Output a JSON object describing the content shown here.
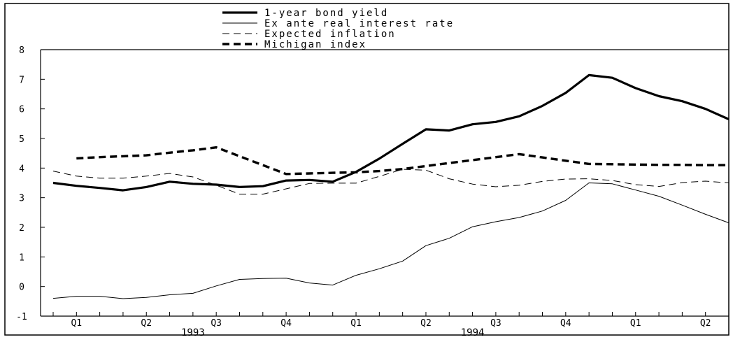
{
  "chart_data": {
    "type": "line",
    "title": "",
    "xlabel": "",
    "ylabel": "",
    "ylim": [
      -1,
      8
    ],
    "yticks": [
      -1,
      0,
      1,
      2,
      3,
      4,
      5,
      6,
      7,
      8
    ],
    "grid": false,
    "legend_position": "top-center",
    "x_periods": [
      "1993-01",
      "1993-02",
      "1993-03",
      "1993-04",
      "1993-05",
      "1993-06",
      "1993-07",
      "1993-08",
      "1993-09",
      "1993-10",
      "1993-11",
      "1993-12",
      "1994-01",
      "1994-02",
      "1994-03",
      "1994-04",
      "1994-05",
      "1994-06",
      "1994-07",
      "1994-08",
      "1994-09",
      "1994-10",
      "1994-11",
      "1994-12",
      "1995-01",
      "1995-02",
      "1995-03",
      "1995-04",
      "1995-05",
      "1995-06"
    ],
    "quarter_labels": [
      {
        "label": "Q1",
        "period": "1993-02"
      },
      {
        "label": "Q2",
        "period": "1993-05"
      },
      {
        "label": "Q3",
        "period": "1993-08"
      },
      {
        "label": "Q4",
        "period": "1993-11"
      },
      {
        "label": "Q1",
        "period": "1994-02"
      },
      {
        "label": "Q2",
        "period": "1994-05"
      },
      {
        "label": "Q3",
        "period": "1994-08"
      },
      {
        "label": "Q4",
        "period": "1994-11"
      },
      {
        "label": "Q1",
        "period": "1995-02"
      },
      {
        "label": "Q2",
        "period": "1995-05"
      }
    ],
    "year_labels": [
      {
        "label": "1993",
        "period": "1993-07"
      },
      {
        "label": "1994",
        "period": "1994-07"
      }
    ],
    "series": [
      {
        "name": "1-year bond yield",
        "style": "thick-solid",
        "values": [
          3.5,
          3.4,
          3.33,
          3.25,
          3.36,
          3.54,
          3.47,
          3.44,
          3.36,
          3.39,
          3.58,
          3.6,
          3.54,
          3.87,
          4.32,
          4.82,
          5.31,
          5.27,
          5.48,
          5.56,
          5.75,
          6.1,
          6.54,
          7.14,
          7.05,
          6.7,
          6.43,
          6.26,
          6.0,
          5.65
        ]
      },
      {
        "name": "Ex ante real interest rate",
        "style": "thin-solid",
        "values": [
          -0.4,
          -0.33,
          -0.33,
          -0.41,
          -0.37,
          -0.28,
          -0.23,
          0.02,
          0.24,
          0.27,
          0.28,
          0.12,
          0.05,
          0.38,
          0.6,
          0.86,
          1.38,
          1.63,
          2.02,
          2.19,
          2.33,
          2.55,
          2.91,
          3.5,
          3.47,
          3.26,
          3.05,
          2.75,
          2.44,
          2.15
        ]
      },
      {
        "name": "Expected inflation",
        "style": "thin-dashed",
        "values": [
          3.9,
          3.73,
          3.66,
          3.66,
          3.73,
          3.82,
          3.7,
          3.42,
          3.12,
          3.12,
          3.3,
          3.48,
          3.49,
          3.49,
          3.72,
          3.96,
          3.93,
          3.64,
          3.46,
          3.37,
          3.42,
          3.55,
          3.63,
          3.64,
          3.58,
          3.44,
          3.38,
          3.51,
          3.56,
          3.5
        ]
      },
      {
        "name": "Michigan index",
        "style": "thick-dashed",
        "values": [
          null,
          4.33,
          4.37,
          4.4,
          4.43,
          4.52,
          4.6,
          4.7,
          4.4,
          4.1,
          3.8,
          3.82,
          3.84,
          3.86,
          3.9,
          3.97,
          4.07,
          4.17,
          4.27,
          4.37,
          4.47,
          4.36,
          4.25,
          4.14,
          4.13,
          4.12,
          4.11,
          4.11,
          4.1,
          4.1
        ]
      }
    ]
  }
}
